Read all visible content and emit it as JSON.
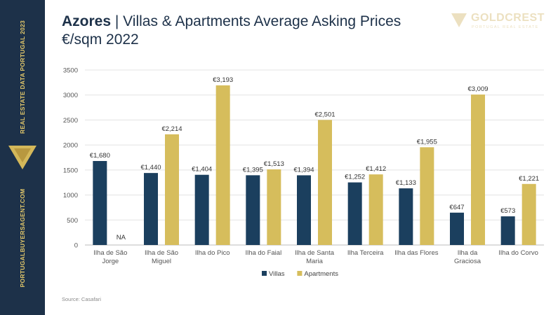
{
  "sidebar": {
    "top_text": "REAL ESTATE DATA PORTUGAL 2023",
    "bottom_text": "PORTUGALBUYERSAGENT.COM"
  },
  "header": {
    "title_strong": "Azores",
    "title_rest": " | Villas & Apartments Average Asking Prices",
    "subtitle": "€/sqm 2022"
  },
  "logo": {
    "name": "GOLDCREST",
    "tagline": "PORTUGAL REAL ESTATE"
  },
  "colors": {
    "villas": "#1b3f5e",
    "apartments": "#d6bd5c",
    "sidebar": "#1d3149",
    "accent": "#e2c76a"
  },
  "chart_data": {
    "type": "bar",
    "categories": [
      [
        "Ilha de São",
        "Jorge"
      ],
      [
        "Ilha de São",
        "Miguel"
      ],
      [
        "Ilha do Pico"
      ],
      [
        "Ilha do Faial"
      ],
      [
        "Ilha de Santa",
        "Maria"
      ],
      [
        "Ilha Terceira"
      ],
      [
        "Ilha das Flores"
      ],
      [
        "Ilha da",
        "Graciosa"
      ],
      [
        "Ilha do Corvo"
      ]
    ],
    "series": [
      {
        "name": "Villas",
        "values": [
          1680,
          1440,
          1404,
          1395,
          1394,
          1252,
          1133,
          647,
          573
        ],
        "labels": [
          "€1,680",
          "€1,440",
          "€1,404",
          "€1,395",
          "€1,394",
          "€1,252",
          "€1,133",
          "€647",
          "€573"
        ]
      },
      {
        "name": "Apartments",
        "values": [
          null,
          2214,
          3193,
          1513,
          2501,
          1412,
          1955,
          3009,
          1221
        ],
        "labels": [
          "NA",
          "€2,214",
          "€3,193",
          "€1,513",
          "€2,501",
          "€1,412",
          "€1,955",
          "€3,009",
          "€1,221"
        ]
      }
    ],
    "ylim": [
      0,
      3500
    ],
    "yticks": [
      0,
      500,
      1000,
      1500,
      2000,
      2500,
      3000,
      3500
    ],
    "grid": true,
    "legend_position": "bottom"
  },
  "source": "Source:  Casafari"
}
